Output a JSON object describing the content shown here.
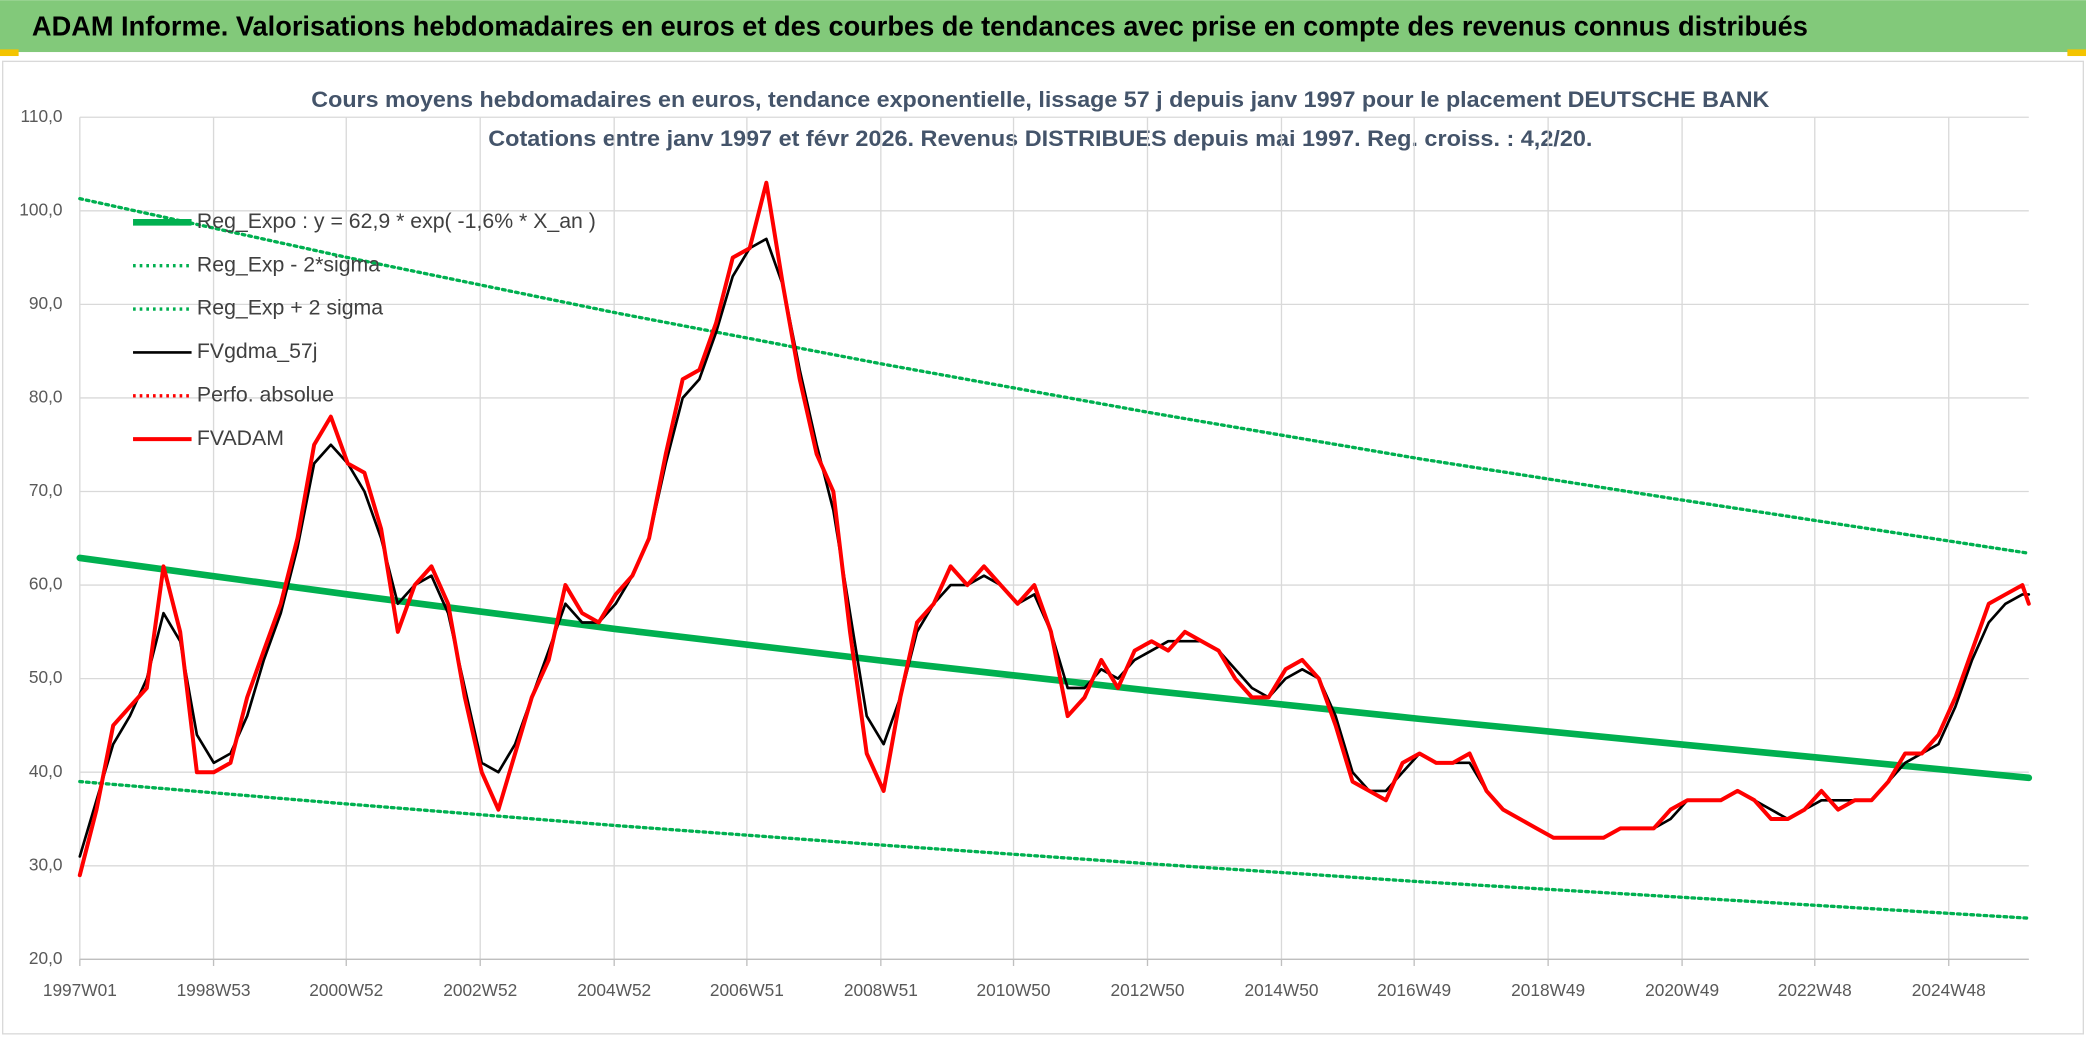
{
  "header": {
    "title": "ADAM Informe. Valorisations hebdomadaires en euros et des courbes de tendances avec prise en compte des revenus connus distribués"
  },
  "chart_data": {
    "type": "line",
    "title": "Cours moyens hebdomadaires en euros, tendance exponentielle, lissage 57 j depuis janv 1997 pour le placement DEUTSCHE BANK",
    "subtitle": "Cotations entre janv 1997 et févr 2026. Revenus DISTRIBUES depuis mai 1997. Reg. croiss. : 4,2/20.",
    "x": [
      "1997W01",
      "1997W14",
      "1997W27",
      "1997W40",
      "1998W01",
      "1998W14",
      "1998W27",
      "1998W40",
      "1999W01",
      "1999W14",
      "1999W27",
      "1999W40",
      "2000W01",
      "2000W14",
      "2000W27",
      "2000W40",
      "2001W01",
      "2001W14",
      "2001W27",
      "2001W40",
      "2002W01",
      "2002W14",
      "2002W27",
      "2002W40",
      "2003W01",
      "2003W14",
      "2003W27",
      "2003W40",
      "2004W01",
      "2004W14",
      "2004W27",
      "2004W40",
      "2005W01",
      "2005W14",
      "2005W27",
      "2005W40",
      "2006W01",
      "2006W14",
      "2006W27",
      "2006W40",
      "2007W01",
      "2007W14",
      "2007W27",
      "2007W40",
      "2008W01",
      "2008W14",
      "2008W27",
      "2008W40",
      "2009W01",
      "2009W14",
      "2009W27",
      "2009W40",
      "2010W01",
      "2010W14",
      "2010W27",
      "2010W40",
      "2011W01",
      "2011W14",
      "2011W27",
      "2011W40",
      "2012W01",
      "2012W14",
      "2012W27",
      "2012W40",
      "2013W01",
      "2013W14",
      "2013W27",
      "2013W40",
      "2014W01",
      "2014W14",
      "2014W27",
      "2014W40",
      "2015W01",
      "2015W14",
      "2015W27",
      "2015W40",
      "2016W01",
      "2016W14",
      "2016W27",
      "2016W40",
      "2017W01",
      "2017W14",
      "2017W27",
      "2017W40",
      "2018W01",
      "2018W14",
      "2018W27",
      "2018W40",
      "2019W01",
      "2019W14",
      "2019W27",
      "2019W40",
      "2020W01",
      "2020W14",
      "2020W27",
      "2020W40",
      "2021W01",
      "2021W14",
      "2021W27",
      "2021W40",
      "2022W01",
      "2022W14",
      "2022W27",
      "2022W40",
      "2023W01",
      "2023W14",
      "2023W27",
      "2023W40",
      "2024W01",
      "2024W14",
      "2024W27",
      "2024W40",
      "2025W01",
      "2025W14",
      "2025W27",
      "2025W40",
      "2026W01",
      "2026W06"
    ],
    "xlim": [
      "1997W01",
      "2026W06"
    ],
    "xticks": [
      "1997W01",
      "1998W53",
      "2000W52",
      "2002W52",
      "2004W52",
      "2006W51",
      "2008W51",
      "2010W50",
      "2012W50",
      "2014W50",
      "2016W49",
      "2018W49",
      "2020W49",
      "2022W48",
      "2024W48"
    ],
    "ylim": [
      20,
      110
    ],
    "yticks": [
      {
        "value": 20,
        "label": "20,0"
      },
      {
        "value": 30,
        "label": "30,0"
      },
      {
        "value": 40,
        "label": "40,0"
      },
      {
        "value": 50,
        "label": "50,0"
      },
      {
        "value": 60,
        "label": "60,0"
      },
      {
        "value": 70,
        "label": "70,0"
      },
      {
        "value": 80,
        "label": "80,0"
      },
      {
        "value": 90,
        "label": "90,0"
      },
      {
        "value": 100,
        "label": "100,0"
      },
      {
        "value": 110,
        "label": "110,0"
      }
    ],
    "grid": true,
    "legend": "upper left",
    "series": [
      {
        "name": "Reg_Expo : y = 62,9 * exp( -1,6% *  X_an )",
        "color": "#00b050",
        "style": "thick",
        "x": [
          "1997W01",
          "2001W01",
          "2005W01",
          "2009W01",
          "2013W01",
          "2017W01",
          "2021W01",
          "2026W06"
        ],
        "values": [
          62.9,
          59.0,
          55.3,
          51.9,
          48.7,
          45.7,
          42.9,
          39.4
        ]
      },
      {
        "name": "Reg_Exp - 2*sigma",
        "color": "#00b050",
        "style": "dotted",
        "x": [
          "1997W01",
          "2001W01",
          "2005W01",
          "2009W01",
          "2013W01",
          "2017W01",
          "2021W01",
          "2026W06"
        ],
        "values": [
          39.0,
          36.6,
          34.3,
          32.2,
          30.2,
          28.3,
          26.6,
          24.4
        ]
      },
      {
        "name": "Reg_Exp + 2 sigma",
        "color": "#00b050",
        "style": "dotted",
        "x": [
          "1997W01",
          "2001W01",
          "2005W01",
          "2009W01",
          "2013W01",
          "2017W01",
          "2021W01",
          "2026W06"
        ],
        "values": [
          101.3,
          95.0,
          89.1,
          83.6,
          78.4,
          73.5,
          69.0,
          63.4
        ]
      },
      {
        "name": "FVgdma_57j",
        "color": "#000000",
        "style": "solid",
        "values": [
          31,
          37,
          43,
          46,
          50,
          57,
          54,
          44,
          41,
          42,
          46,
          52,
          57,
          64,
          73,
          75,
          73,
          70,
          65,
          58,
          60,
          61,
          57,
          49,
          41,
          40,
          43,
          48,
          53,
          58,
          56,
          56,
          58,
          61,
          65,
          73,
          80,
          82,
          87,
          93,
          96,
          97,
          92,
          83,
          75,
          68,
          57,
          46,
          43,
          48,
          55,
          58,
          60,
          60,
          61,
          60,
          58,
          59,
          55,
          49,
          49,
          51,
          50,
          52,
          53,
          54,
          54,
          54,
          53,
          51,
          49,
          48,
          50,
          51,
          50,
          46,
          40,
          38,
          38,
          40,
          42,
          41,
          41,
          41,
          38,
          36,
          35,
          34,
          33,
          33,
          33,
          33,
          34,
          34,
          34,
          35,
          37,
          37,
          37,
          38,
          37,
          36,
          35,
          36,
          37,
          37,
          37,
          37,
          39,
          41,
          42,
          43,
          47,
          52,
          56,
          58,
          59,
          59
        ]
      },
      {
        "name": "Perfo. absolue",
        "color": "#ff0000",
        "style": "dotted",
        "x": [],
        "values": []
      },
      {
        "name": "FVADAM",
        "color": "#ff0000",
        "style": "red",
        "values": [
          29,
          36,
          45,
          47,
          49,
          62,
          55,
          40,
          40,
          41,
          48,
          53,
          58,
          65,
          75,
          78,
          73,
          72,
          66,
          55,
          60,
          62,
          58,
          48,
          40,
          36,
          42,
          48,
          52,
          60,
          57,
          56,
          59,
          61,
          65,
          74,
          82,
          83,
          88,
          95,
          96,
          103,
          92,
          82,
          74,
          70,
          55,
          42,
          38,
          48,
          56,
          58,
          62,
          60,
          62,
          60,
          58,
          60,
          55,
          46,
          48,
          52,
          49,
          53,
          54,
          53,
          55,
          54,
          53,
          50,
          48,
          48,
          51,
          52,
          50,
          45,
          39,
          38,
          37,
          41,
          42,
          41,
          41,
          42,
          38,
          36,
          35,
          34,
          33,
          33,
          33,
          33,
          34,
          34,
          34,
          36,
          37,
          37,
          37,
          38,
          37,
          35,
          35,
          36,
          38,
          36,
          37,
          37,
          39,
          42,
          42,
          44,
          48,
          53,
          58,
          59,
          60,
          58
        ]
      }
    ]
  }
}
